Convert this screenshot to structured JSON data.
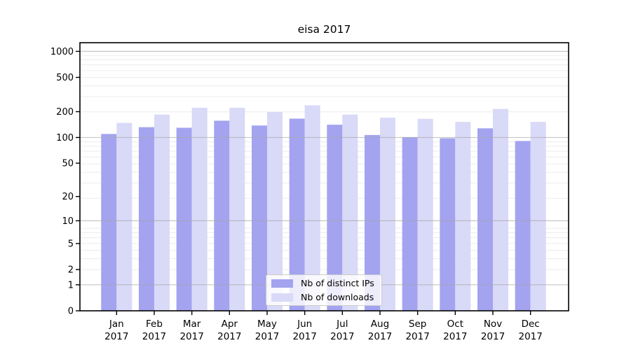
{
  "chart_data": {
    "type": "bar",
    "title": "eisa 2017",
    "categories": [
      "Jan 2017",
      "Feb 2017",
      "Mar 2017",
      "Apr 2017",
      "May 2017",
      "Jun 2017",
      "Jul 2017",
      "Aug 2017",
      "Sep 2017",
      "Oct 2017",
      "Nov 2017",
      "Dec 2017"
    ],
    "series": [
      {
        "name": "Nb of distinct IPs",
        "color": "#a3a3f0",
        "values": [
          110,
          132,
          130,
          157,
          138,
          166,
          141,
          107,
          101,
          98,
          128,
          91
        ]
      },
      {
        "name": "Nb of downloads",
        "color": "#d9d9f8",
        "values": [
          148,
          185,
          222,
          222,
          198,
          237,
          185,
          170,
          165,
          152,
          215,
          152
        ]
      }
    ],
    "xlabel": "",
    "ylabel": "",
    "y_scale": "log(1+y)",
    "y_ticks": [
      0,
      1,
      2,
      5,
      10,
      20,
      50,
      100,
      200,
      500,
      1000
    ],
    "ylim": [
      0,
      1220
    ],
    "grid": true,
    "legend_position": "lower center"
  }
}
